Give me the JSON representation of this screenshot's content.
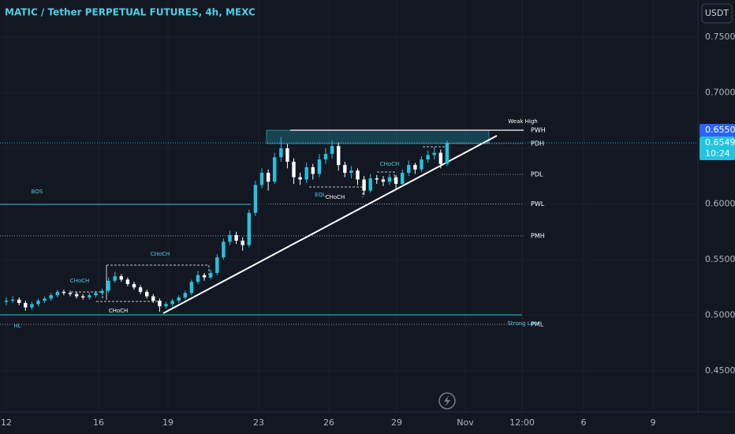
{
  "chart_data": {
    "type": "candlestick",
    "title": "MATIC / Tether PERPETUAL FUTURES, 4h, MEXC",
    "currency": "USDT",
    "x_labels": [
      "12",
      "16",
      "19",
      "23",
      "26",
      "29",
      "Nov",
      "12:00",
      "6",
      "9"
    ],
    "open": [
      0.512,
      0.513,
      0.514,
      0.511,
      0.507,
      0.51,
      0.513,
      0.515,
      0.518,
      0.521,
      0.52,
      0.519,
      0.517,
      0.516,
      0.518,
      0.52,
      0.522,
      0.531,
      0.535,
      0.532,
      0.528,
      0.525,
      0.521,
      0.517,
      0.513,
      0.508,
      0.51,
      0.513,
      0.516,
      0.52,
      0.53,
      0.536,
      0.534,
      0.538,
      0.552,
      0.566,
      0.572,
      0.567,
      0.563,
      0.592,
      0.617,
      0.628,
      0.62,
      0.642,
      0.65,
      0.638,
      0.624,
      0.622,
      0.633,
      0.627,
      0.64,
      0.645,
      0.652,
      0.635,
      0.628,
      0.63,
      0.622,
      0.612,
      0.623,
      0.622,
      0.62,
      0.624,
      0.618,
      0.628,
      0.635,
      0.631,
      0.64,
      0.644,
      0.646,
      0.636
    ],
    "high": [
      0.516,
      0.517,
      0.516,
      0.513,
      0.512,
      0.515,
      0.517,
      0.52,
      0.523,
      0.523,
      0.522,
      0.521,
      0.519,
      0.52,
      0.522,
      0.524,
      0.534,
      0.539,
      0.537,
      0.534,
      0.53,
      0.527,
      0.523,
      0.519,
      0.515,
      0.512,
      0.515,
      0.518,
      0.522,
      0.532,
      0.54,
      0.538,
      0.541,
      0.555,
      0.569,
      0.576,
      0.575,
      0.57,
      0.595,
      0.621,
      0.632,
      0.631,
      0.646,
      0.66,
      0.654,
      0.641,
      0.628,
      0.637,
      0.636,
      0.645,
      0.65,
      0.657,
      0.655,
      0.638,
      0.634,
      0.632,
      0.625,
      0.627,
      0.626,
      0.625,
      0.627,
      0.626,
      0.631,
      0.639,
      0.637,
      0.643,
      0.648,
      0.651,
      0.649,
      0.657
    ],
    "low": [
      0.509,
      0.511,
      0.509,
      0.504,
      0.505,
      0.508,
      0.511,
      0.513,
      0.516,
      0.518,
      0.517,
      0.515,
      0.514,
      0.514,
      0.516,
      0.518,
      0.52,
      0.529,
      0.53,
      0.526,
      0.523,
      0.519,
      0.515,
      0.511,
      0.503,
      0.506,
      0.508,
      0.511,
      0.514,
      0.518,
      0.528,
      0.531,
      0.532,
      0.536,
      0.55,
      0.563,
      0.564,
      0.558,
      0.561,
      0.589,
      0.614,
      0.612,
      0.618,
      0.638,
      0.632,
      0.618,
      0.617,
      0.619,
      0.622,
      0.624,
      0.636,
      0.641,
      0.63,
      0.624,
      0.623,
      0.617,
      0.608,
      0.61,
      0.618,
      0.616,
      0.617,
      0.614,
      0.616,
      0.625,
      0.627,
      0.629,
      0.637,
      0.64,
      0.632,
      0.634
    ],
    "close": [
      0.513,
      0.514,
      0.511,
      0.507,
      0.51,
      0.513,
      0.515,
      0.518,
      0.521,
      0.52,
      0.519,
      0.517,
      0.516,
      0.518,
      0.52,
      0.522,
      0.531,
      0.535,
      0.532,
      0.528,
      0.525,
      0.521,
      0.517,
      0.513,
      0.508,
      0.51,
      0.513,
      0.516,
      0.52,
      0.53,
      0.536,
      0.534,
      0.538,
      0.552,
      0.566,
      0.572,
      0.567,
      0.563,
      0.592,
      0.617,
      0.628,
      0.62,
      0.642,
      0.65,
      0.638,
      0.624,
      0.622,
      0.633,
      0.627,
      0.64,
      0.645,
      0.652,
      0.635,
      0.628,
      0.63,
      0.622,
      0.612,
      0.623,
      0.622,
      0.62,
      0.624,
      0.618,
      0.628,
      0.635,
      0.631,
      0.64,
      0.644,
      0.646,
      0.636,
      0.6549
    ],
    "up_color": "#22c3e0",
    "down_color": "#ffffff",
    "ylim": [
      0.4131,
      0.7833
    ],
    "yticks": [
      {
        "value": 0.45,
        "label": "0.4500"
      },
      {
        "value": 0.5,
        "label": "0.5000"
      },
      {
        "value": 0.55,
        "label": "0.5500"
      },
      {
        "value": 0.6,
        "label": "0.6000"
      },
      {
        "value": 0.65,
        "label": "0.6500"
      },
      {
        "value": 0.7,
        "label": "0.7000"
      },
      {
        "value": 0.75,
        "label": "0.7500"
      }
    ],
    "levels": [
      {
        "label": "PWH",
        "value": 0.6663
      },
      {
        "label": "PDH",
        "value": 0.6543
      },
      {
        "label": "PDL",
        "value": 0.6266
      },
      {
        "label": "PWL",
        "value": 0.6
      },
      {
        "label": "PMH",
        "value": 0.5713
      },
      {
        "label": "PML",
        "value": 0.4918
      }
    ],
    "annotations": [
      "BOS",
      "CHoCH",
      "CHoCH",
      "CHoCH",
      "CHoCH",
      "CHoCH",
      "EQL",
      "HL",
      "Weak High",
      "Strong Low"
    ],
    "high_badge": "0.6550",
    "last_price": {
      "value": 0.6549,
      "label": "0.6549"
    },
    "countdown": "10:24"
  }
}
